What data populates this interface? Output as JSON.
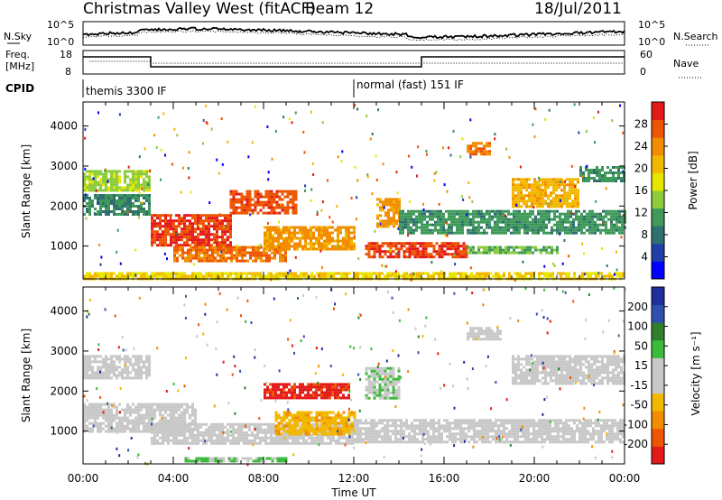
{
  "header": {
    "title": "Christmas Valley West (fitACF)",
    "beam": "Beam 12",
    "date": "18/Jul/2011"
  },
  "strips": {
    "nsky_label": "N.Sky",
    "nsky_top_tick": "10^5",
    "nsky_bottom_tick": "10^0",
    "nsearch_label": "N.Search",
    "nsearch_top_tick": "10^5",
    "nsearch_bottom_tick": "10^0",
    "freq_label_1": "Freq.",
    "freq_label_2": "[MHz]",
    "freq_top_tick": "18",
    "freq_bottom_tick": "8",
    "nave_label": "Nave",
    "nave_top_tick": "60",
    "nave_bottom_tick": "0",
    "cpid_label": "CPID",
    "cpid_modes": [
      {
        "label": "themis 3300 IF",
        "start_hour": 0.0
      },
      {
        "label": "normal (fast) 151 IF",
        "start_hour": 12.0
      }
    ]
  },
  "colors": {
    "power_scale": [
      "#0000ff",
      "#1f3fa8",
      "#2f6f6f",
      "#3f9a5a",
      "#8ccc3c",
      "#e6e600",
      "#f2b800",
      "#f28c00",
      "#ee5500",
      "#e41a1a"
    ],
    "velocity_scale": [
      "#e41a1a",
      "#ee5500",
      "#f28c00",
      "#f2b800",
      "#c8c8c8",
      "#c8c8c8",
      "#3cba3c",
      "#2f7f2f",
      "#3050b0",
      "#1f2fa0"
    ],
    "velocity_ground": "#c8c8c8"
  },
  "chart_data": [
    {
      "type": "heatmap",
      "name": "Power",
      "ylabel": "Slant Range [km]",
      "xlabel": "",
      "x_ticks": [],
      "y_ticks": [
        "1000",
        "2000",
        "3000",
        "4000"
      ],
      "xlim_hours": [
        0,
        24
      ],
      "ylim": [
        180,
        4600
      ],
      "colorbar_label": "Power [dB]",
      "colorbar_ticks": [
        "4",
        "8",
        "12",
        "16",
        "20",
        "24",
        "28"
      ],
      "colorbar_range": [
        0,
        30
      ],
      "regions": [
        {
          "t0": 0.0,
          "t1": 3.0,
          "r0": 2400,
          "r1": 2900,
          "value": 14
        },
        {
          "t0": 0.0,
          "t1": 3.0,
          "r0": 1800,
          "r1": 2300,
          "value": 9
        },
        {
          "t0": 3.0,
          "t1": 6.5,
          "r0": 1000,
          "r1": 1800,
          "value": 27
        },
        {
          "t0": 4.0,
          "t1": 9.0,
          "r0": 600,
          "r1": 1000,
          "value": 24
        },
        {
          "t0": 6.5,
          "t1": 9.5,
          "r0": 1800,
          "r1": 2400,
          "value": 26
        },
        {
          "t0": 8.0,
          "t1": 12.0,
          "r0": 900,
          "r1": 1500,
          "value": 22
        },
        {
          "t0": 12.5,
          "t1": 17.0,
          "r0": 700,
          "r1": 1100,
          "value": 27
        },
        {
          "t0": 13.0,
          "t1": 14.0,
          "r0": 1500,
          "r1": 2200,
          "value": 22
        },
        {
          "t0": 17.0,
          "t1": 21.0,
          "r0": 800,
          "r1": 1000,
          "value": 12
        },
        {
          "t0": 14.0,
          "t1": 24.0,
          "r0": 1300,
          "r1": 1900,
          "value": 10
        },
        {
          "t0": 17.0,
          "t1": 18.0,
          "r0": 3300,
          "r1": 3600,
          "value": 24
        },
        {
          "t0": 19.0,
          "t1": 22.0,
          "r0": 2000,
          "r1": 2700,
          "value": 20
        },
        {
          "t0": 22.0,
          "t1": 24.0,
          "r0": 2600,
          "r1": 3000,
          "value": 10
        },
        {
          "t0": 0.0,
          "t1": 24.0,
          "r0": 200,
          "r1": 350,
          "value": 18
        }
      ]
    },
    {
      "type": "heatmap",
      "name": "Velocity",
      "ylabel": "Slant Range [km]",
      "xlabel": "Time UT",
      "x_ticks": [
        "00:00",
        "04:00",
        "08:00",
        "12:00",
        "16:00",
        "20:00",
        "00:00"
      ],
      "y_ticks": [
        "1000",
        "2000",
        "3000",
        "4000"
      ],
      "xlim_hours": [
        0,
        24
      ],
      "ylim": [
        180,
        4600
      ],
      "colorbar_label": "Velocity [m s⁻¹]",
      "colorbar_ticks": [
        "-200",
        "-100",
        "-50",
        "-15",
        "15",
        "50",
        "100",
        "200"
      ],
      "colorbar_range": [
        -250,
        250
      ],
      "regions": [
        {
          "t0": 0.0,
          "t1": 3.0,
          "r0": 2300,
          "r1": 2900,
          "value": 0
        },
        {
          "t0": 0.0,
          "t1": 5.0,
          "r0": 1000,
          "r1": 1700,
          "value": 0
        },
        {
          "t0": 3.0,
          "t1": 12.0,
          "r0": 700,
          "r1": 1200,
          "value": 0
        },
        {
          "t0": 8.0,
          "t1": 11.8,
          "r0": 1800,
          "r1": 2200,
          "value": -220
        },
        {
          "t0": 8.5,
          "t1": 12.0,
          "r0": 900,
          "r1": 1500,
          "value": -80
        },
        {
          "t0": 12.0,
          "t1": 24.0,
          "r0": 700,
          "r1": 1300,
          "value": 0
        },
        {
          "t0": 12.5,
          "t1": 14.0,
          "r0": 1800,
          "r1": 2600,
          "value": 40
        },
        {
          "t0": 17.0,
          "t1": 18.5,
          "r0": 3300,
          "r1": 3600,
          "value": 0
        },
        {
          "t0": 19.0,
          "t1": 24.0,
          "r0": 2200,
          "r1": 2900,
          "value": 0
        },
        {
          "t0": 4.5,
          "t1": 9.0,
          "r0": 250,
          "r1": 350,
          "value": 60
        }
      ]
    }
  ]
}
